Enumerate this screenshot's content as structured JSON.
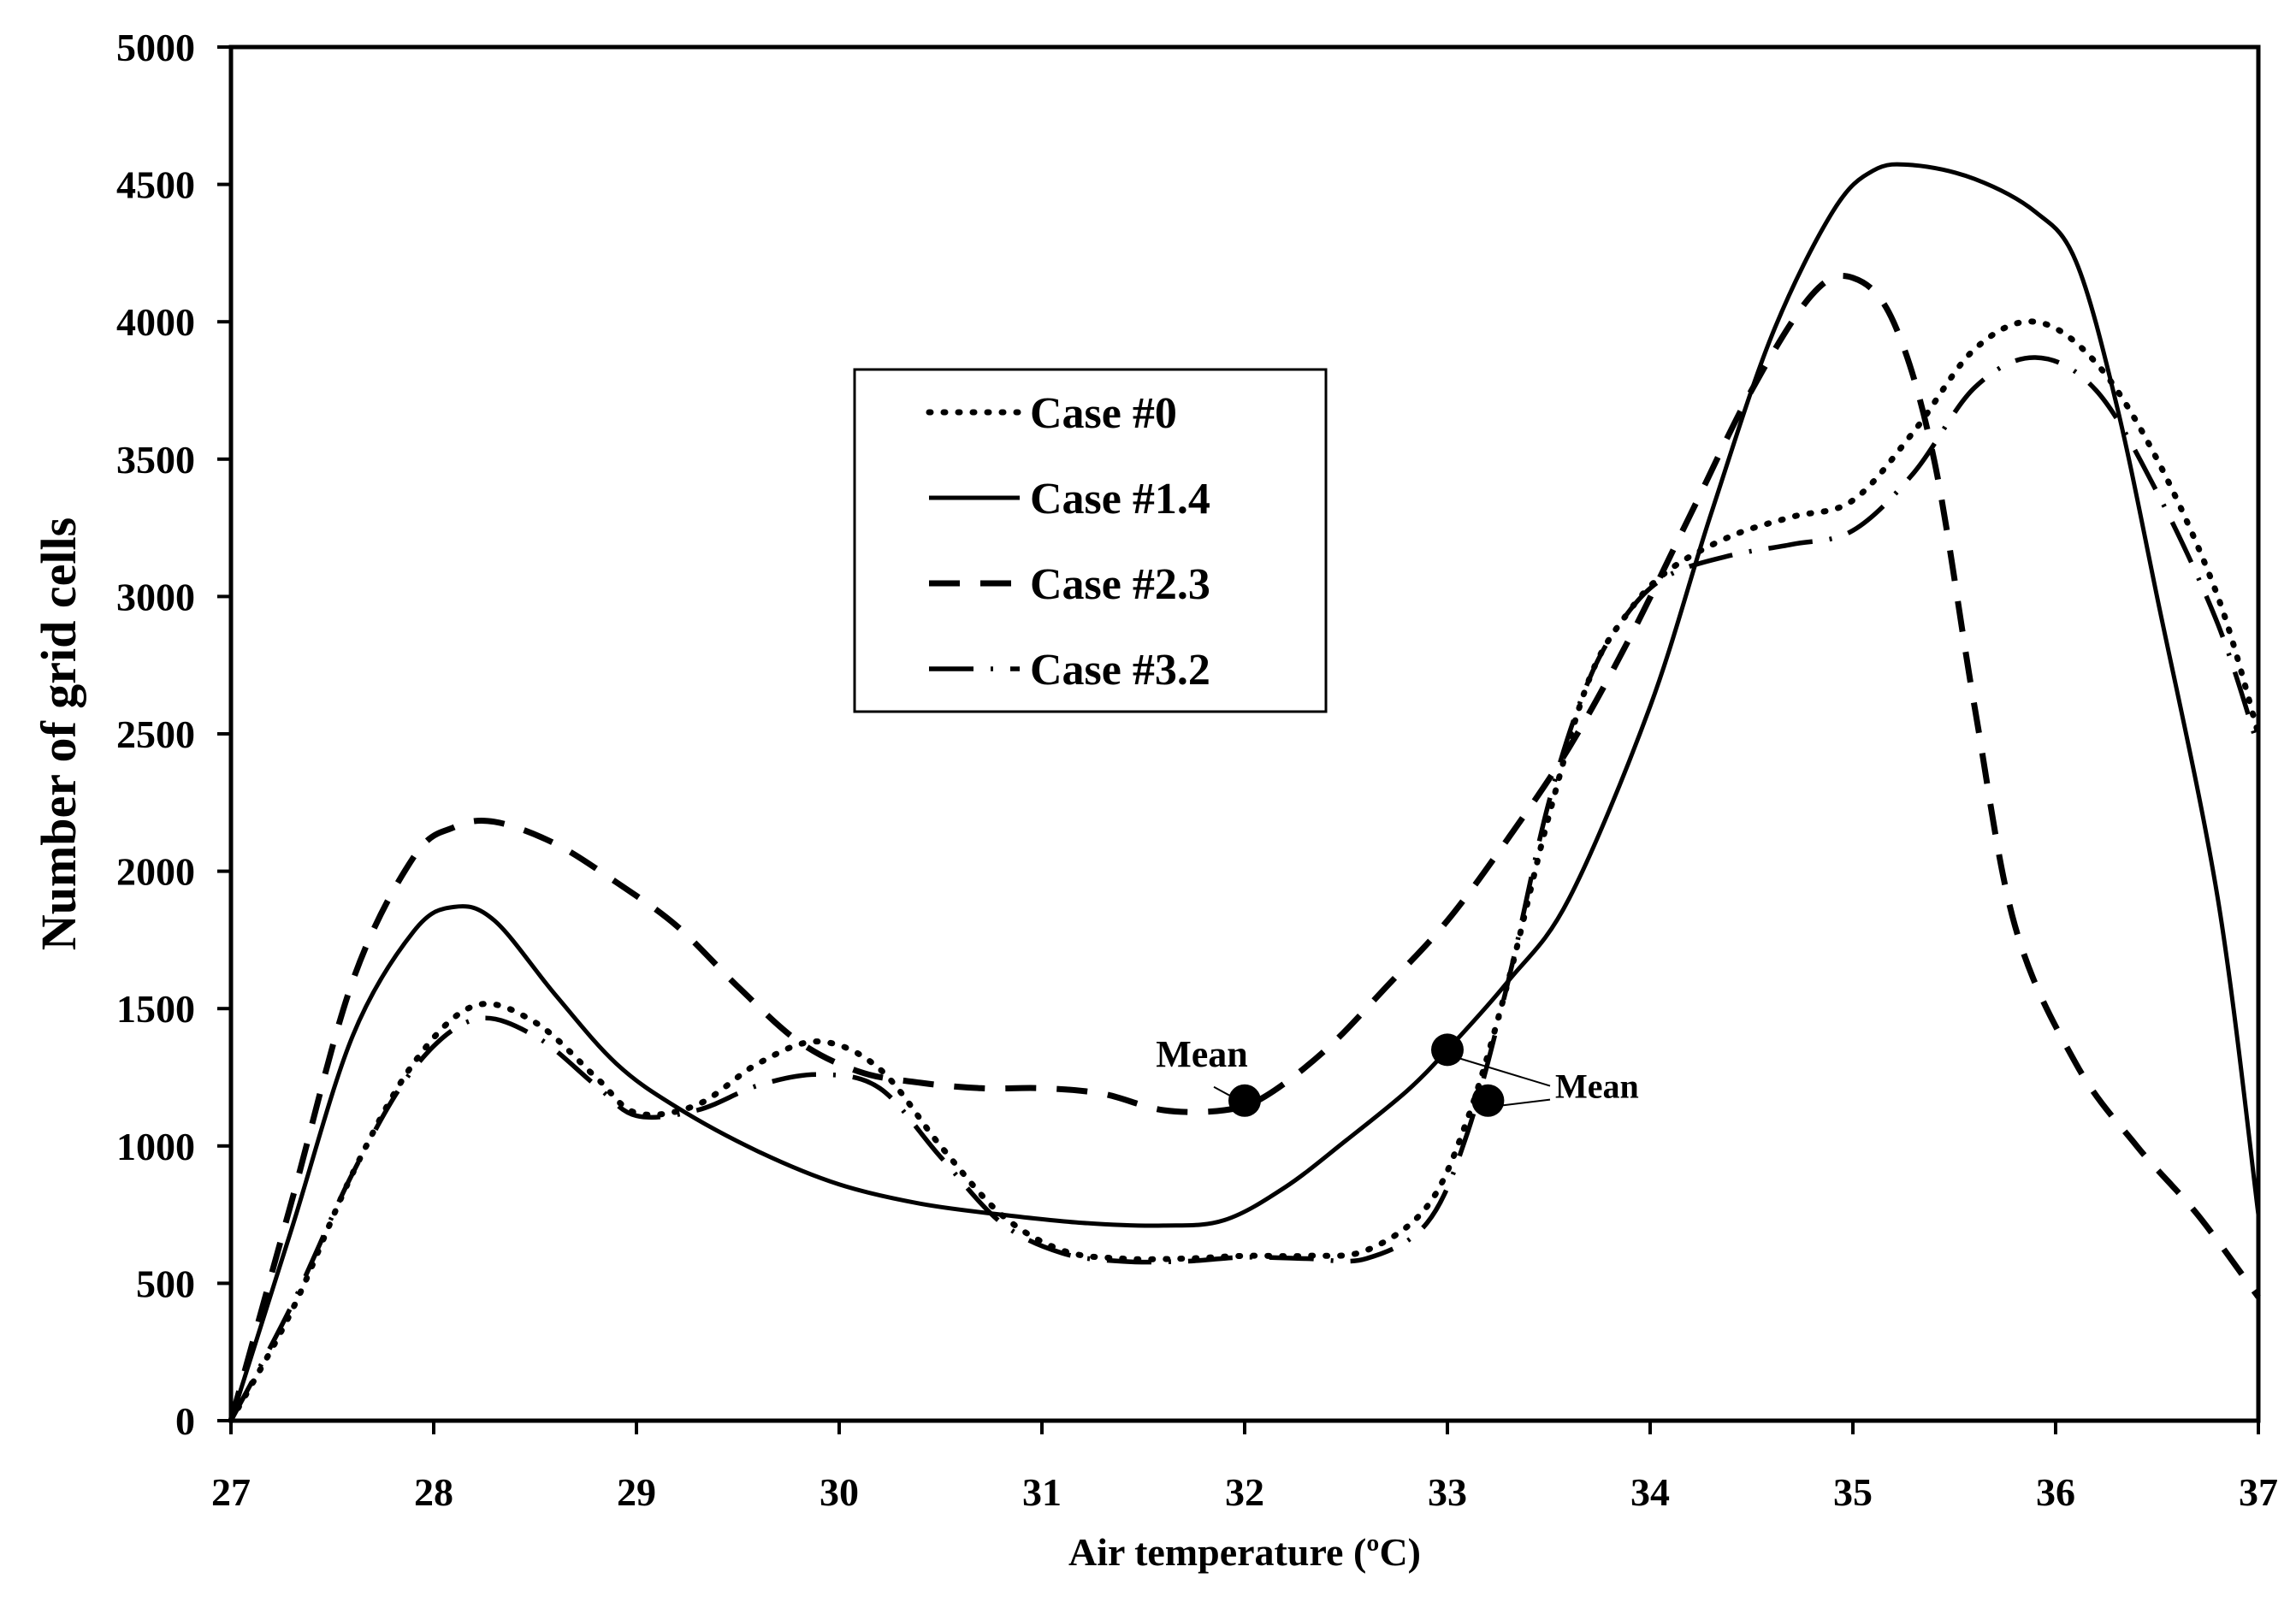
{
  "chart_data": {
    "type": "line",
    "title": "",
    "xlabel": "Air temperature (ºC)",
    "ylabel": "Number of grid cells",
    "xlim": [
      27,
      37
    ],
    "ylim": [
      0,
      5000
    ],
    "xticks": [
      27,
      28,
      29,
      30,
      31,
      32,
      33,
      34,
      35,
      36,
      37
    ],
    "yticks": [
      0,
      500,
      1000,
      1500,
      2000,
      2500,
      3000,
      3500,
      4000,
      4500,
      5000
    ],
    "grid": false,
    "legend_position": "upper-center-left",
    "series": [
      {
        "name": "Case #0",
        "style": "dotted",
        "x": [
          27.0,
          27.3,
          27.6,
          27.9,
          28.2,
          28.5,
          28.8,
          29.0,
          29.3,
          29.6,
          29.9,
          30.2,
          30.5,
          30.8,
          31.1,
          31.4,
          31.7,
          32.0,
          32.3,
          32.6,
          32.9,
          33.1,
          33.3,
          33.5,
          33.7,
          33.9,
          34.1,
          34.4,
          34.7,
          35.0,
          35.3,
          35.6,
          35.9,
          36.2,
          36.5,
          36.8,
          37.0
        ],
        "y": [
          0,
          400,
          900,
          1300,
          1510,
          1450,
          1250,
          1120,
          1150,
          1300,
          1380,
          1280,
          1000,
          750,
          620,
          590,
          590,
          600,
          600,
          620,
          780,
          1100,
          1600,
          2200,
          2700,
          2950,
          3100,
          3220,
          3290,
          3350,
          3600,
          3900,
          4000,
          3850,
          3500,
          3000,
          2500
        ]
      },
      {
        "name": "Case #1.4",
        "style": "solid",
        "x": [
          27.0,
          27.3,
          27.6,
          27.9,
          28.1,
          28.3,
          28.6,
          28.9,
          29.2,
          29.6,
          30.0,
          30.4,
          30.8,
          31.2,
          31.6,
          31.9,
          32.2,
          32.5,
          32.8,
          33.0,
          33.3,
          33.6,
          34.0,
          34.3,
          34.6,
          34.9,
          35.1,
          35.3,
          35.6,
          35.9,
          36.1,
          36.3,
          36.5,
          36.8,
          37.0
        ],
        "y": [
          0,
          700,
          1400,
          1780,
          1870,
          1820,
          1550,
          1300,
          1140,
          980,
          860,
          790,
          750,
          720,
          710,
          730,
          850,
          1020,
          1200,
          1350,
          1600,
          1900,
          2600,
          3300,
          3950,
          4400,
          4550,
          4570,
          4520,
          4400,
          4220,
          3700,
          3000,
          1900,
          750
        ]
      },
      {
        "name": "Case #2.3",
        "style": "dashed",
        "x": [
          27.0,
          27.3,
          27.6,
          27.9,
          28.1,
          28.3,
          28.6,
          28.9,
          29.2,
          29.5,
          29.8,
          30.1,
          30.4,
          30.7,
          31.0,
          31.3,
          31.6,
          31.9,
          32.1,
          32.4,
          32.7,
          33.0,
          33.3,
          33.6,
          33.9,
          34.2,
          34.5,
          34.8,
          35.0,
          35.2,
          35.4,
          35.6,
          35.8,
          36.1,
          36.4,
          36.7,
          37.0
        ],
        "y": [
          0,
          800,
          1600,
          2050,
          2160,
          2180,
          2100,
          1960,
          1800,
          1580,
          1380,
          1270,
          1230,
          1210,
          1210,
          1190,
          1130,
          1130,
          1180,
          1350,
          1580,
          1820,
          2120,
          2450,
          2850,
          3300,
          3750,
          4100,
          4160,
          4000,
          3500,
          2600,
          1800,
          1300,
          1000,
          750,
          450
        ]
      },
      {
        "name": "Case #3.2",
        "style": "dash-dot",
        "x": [
          27.0,
          27.3,
          27.6,
          27.9,
          28.2,
          28.5,
          28.8,
          29.0,
          29.3,
          29.6,
          29.9,
          30.2,
          30.5,
          30.8,
          31.1,
          31.4,
          31.7,
          32.0,
          32.3,
          32.6,
          32.9,
          33.1,
          33.3,
          33.5,
          33.7,
          33.9,
          34.1,
          34.4,
          34.7,
          35.0,
          35.3,
          35.6,
          35.9,
          36.2,
          36.5,
          36.8,
          37.0
        ],
        "y": [
          0,
          420,
          900,
          1280,
          1460,
          1400,
          1220,
          1110,
          1130,
          1220,
          1260,
          1210,
          960,
          720,
          610,
          580,
          580,
          595,
          590,
          590,
          720,
          1050,
          1600,
          2250,
          2700,
          2950,
          3080,
          3150,
          3190,
          3240,
          3450,
          3760,
          3870,
          3750,
          3380,
          2900,
          2450
        ]
      }
    ],
    "annotations": [
      {
        "text": "Mean",
        "series": "Case #2.3",
        "x": 32.0,
        "y": 1165
      },
      {
        "text": "Mean",
        "series": "Case #1.4",
        "x": 33.0,
        "y": 1350
      },
      {
        "text": "Mean",
        "series": "Case #0 / Case #3.2",
        "x": 33.2,
        "y": 1165
      }
    ]
  }
}
